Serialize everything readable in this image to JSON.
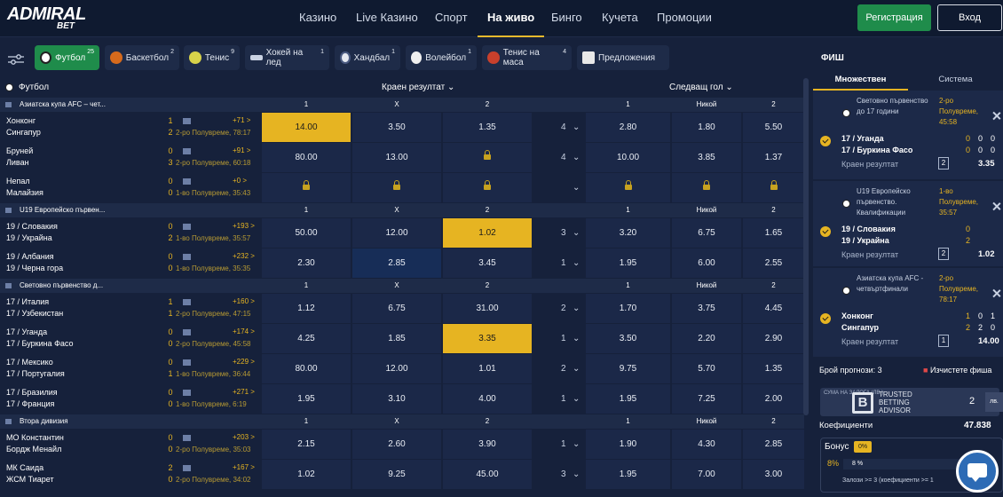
{
  "logo": {
    "line1": "ADMIRAL",
    "line2": "BET"
  },
  "nav": [
    "Казино",
    "Live Казино",
    "Спорт",
    "На живо",
    "Бинго",
    "Кучета",
    "Промоции"
  ],
  "nav_active": "На живо",
  "auth": {
    "register": "Регистрация",
    "login": "Вход"
  },
  "sports": [
    {
      "label": "Футбол",
      "count": "25"
    },
    {
      "label": "Баскетбол",
      "count": "2"
    },
    {
      "label": "Тенис",
      "count": "9"
    },
    {
      "label": "Хокей на лед",
      "count": "1"
    },
    {
      "label": "Хандбал",
      "count": "1"
    },
    {
      "label": "Волейбол",
      "count": "1"
    },
    {
      "label": "Тенис на маса",
      "count": "4"
    },
    {
      "label": "Предложения",
      "count": ""
    }
  ],
  "table_header": {
    "sport": "Футбол",
    "market1": "Краен резултат",
    "market2": "Следващ гол"
  },
  "col_labels": {
    "c1": "1",
    "cx": "X",
    "c2": "2",
    "n1": "1",
    "nn": "Никой",
    "n2": "2"
  },
  "leagues": [
    {
      "name": "Азиатска купа AFC – чет...",
      "matches": [
        {
          "home": "Хонконг",
          "away": "Сингапур",
          "sh": "1",
          "sa": "2",
          "markets": "+71 >",
          "period": "2-ро Полувреме, 78:17",
          "o1": "14.00",
          "ox": "3.50",
          "o2": "1.35",
          "cnt": "4",
          "n1": "2.80",
          "nn": "1.80",
          "n2": "5.50"
        },
        {
          "home": "Бруней",
          "away": "Ливан",
          "sh": "0",
          "sa": "3",
          "markets": "+91 >",
          "period": "2-ро Полувреме, 60:18",
          "o1": "80.00",
          "ox": "13.00",
          "o2": "",
          "cnt": "4",
          "n1": "10.00",
          "nn": "3.85",
          "n2": "1.37"
        },
        {
          "home": "Непал",
          "away": "Малайзия",
          "sh": "0",
          "sa": "0",
          "markets": "+0 >",
          "period": "1-во Полувреме, 35:43",
          "o1": "",
          "ox": "",
          "o2": "",
          "cnt": "",
          "n1": "",
          "nn": "",
          "n2": ""
        }
      ]
    },
    {
      "name": "U19 Европейско първен...",
      "matches": [
        {
          "home": "19 / Словакия",
          "away": "19 / Украйна",
          "sh": "0",
          "sa": "2",
          "markets": "+193 >",
          "period": "1-во Полувреме, 35:57",
          "o1": "50.00",
          "ox": "12.00",
          "o2": "1.02",
          "cnt": "3",
          "n1": "3.20",
          "nn": "6.75",
          "n2": "1.65"
        },
        {
          "home": "19 / Албания",
          "away": "19 / Черна гора",
          "sh": "0",
          "sa": "0",
          "markets": "+232 >",
          "period": "1-во Полувреме, 35:35",
          "o1": "2.30",
          "ox": "2.85",
          "o2": "3.45",
          "cnt": "1",
          "n1": "1.95",
          "nn": "6.00",
          "n2": "2.55"
        }
      ]
    },
    {
      "name": "Световно първенство д...",
      "matches": [
        {
          "home": "17 / Италия",
          "away": "17 / Узбекистан",
          "sh": "1",
          "sa": "1",
          "markets": "+160 >",
          "period": "2-ро Полувреме, 47:15",
          "o1": "1.12",
          "ox": "6.75",
          "o2": "31.00",
          "cnt": "2",
          "n1": "1.70",
          "nn": "3.75",
          "n2": "4.45"
        },
        {
          "home": "17 / Уганда",
          "away": "17 / Буркина Фасо",
          "sh": "0",
          "sa": "0",
          "markets": "+174 >",
          "period": "2-ро Полувреме, 45:58",
          "o1": "4.25",
          "ox": "1.85",
          "o2": "3.35",
          "cnt": "1",
          "n1": "3.50",
          "nn": "2.20",
          "n2": "2.90"
        },
        {
          "home": "17 / Мексико",
          "away": "17 / Португалия",
          "sh": "0",
          "sa": "1",
          "markets": "+229 >",
          "period": "1-во Полувреме, 36:44",
          "o1": "80.00",
          "ox": "12.00",
          "o2": "1.01",
          "cnt": "2",
          "n1": "9.75",
          "nn": "5.70",
          "n2": "1.35"
        },
        {
          "home": "17 / Бразилия",
          "away": "17 / Франция",
          "sh": "0",
          "sa": "0",
          "markets": "+271 >",
          "period": "1-во Полувреме, 6:19",
          "o1": "1.95",
          "ox": "3.10",
          "o2": "4.00",
          "cnt": "1",
          "n1": "1.95",
          "nn": "7.25",
          "n2": "2.00"
        }
      ]
    },
    {
      "name": "Втора дивизия",
      "matches": [
        {
          "home": "МО Константин",
          "away": "Бордж Менайл",
          "sh": "0",
          "sa": "0",
          "markets": "+203 >",
          "period": "2-ро Полувреме, 35:03",
          "o1": "2.15",
          "ox": "2.60",
          "o2": "3.90",
          "cnt": "1",
          "n1": "1.90",
          "nn": "4.30",
          "n2": "2.85"
        },
        {
          "home": "МК Саида",
          "away": "ЖСМ Тиарет",
          "sh": "2",
          "sa": "0",
          "markets": "+167 >",
          "period": "2-ро Полувреме, 34:02",
          "o1": "1.02",
          "ox": "9.25",
          "o2": "45.00",
          "cnt": "3",
          "n1": "1.95",
          "nn": "7.00",
          "n2": "3.00"
        }
      ]
    }
  ],
  "slip": {
    "title": "ФИШ",
    "tab_multi": "Множествен",
    "tab_system": "Система",
    "bets": [
      {
        "league": "Световно първенство до 17 години",
        "period": "2-ро Полувреме, 45:58",
        "home": "17 / Уганда",
        "away": "17 / Буркина Фасо",
        "h1": "0",
        "h2": "0",
        "h3": "0",
        "a1": "0",
        "a2": "0",
        "a3": "0",
        "market": "Краен резултат",
        "pick": "2",
        "odd": "3.35"
      },
      {
        "league": "U19 Европейско първенство. Квалификации",
        "period": "1-во Полувреме, 35:57",
        "home": "19 / Словакия",
        "away": "19 / Украйна",
        "h1": "0",
        "h2": "",
        "h3": "",
        "a1": "2",
        "a2": "",
        "a3": "",
        "market": "Краен резултат",
        "pick": "2",
        "odd": "1.02"
      },
      {
        "league": "Азиатска купа AFC - четвъртфинали",
        "period": "2-ро Полувреме, 78:17",
        "home": "Хонконг",
        "away": "Сингапур",
        "h1": "1",
        "h2": "0",
        "h3": "1",
        "a1": "2",
        "a2": "2",
        "a3": "0",
        "market": "Краен резултат",
        "pick": "1",
        "odd": "14.00"
      }
    ],
    "tips_label": "Брой прогнози:",
    "tips_count": "3",
    "clear": "Изчистете фиша",
    "stake_label": "СУМА НА ЗАЛОГА (ЛВ.)",
    "stake_value": "2",
    "stake_currency": "лв.",
    "coef_label": "Коефициенти",
    "coef_value": "47.838",
    "bonus_label": "Бонус",
    "bonus_badge": "0%",
    "bonus_pct": "8%",
    "bonus_pct2": "8 %",
    "bonus_note": "Залози >= 3 (коефициенти >= 1",
    "watermark": [
      "TRUSTED",
      "BETTING",
      "ADVISOR"
    ]
  },
  "colors": {
    "accent": "#e6b422",
    "green": "#1f8c4b",
    "bg": "#16213b"
  }
}
